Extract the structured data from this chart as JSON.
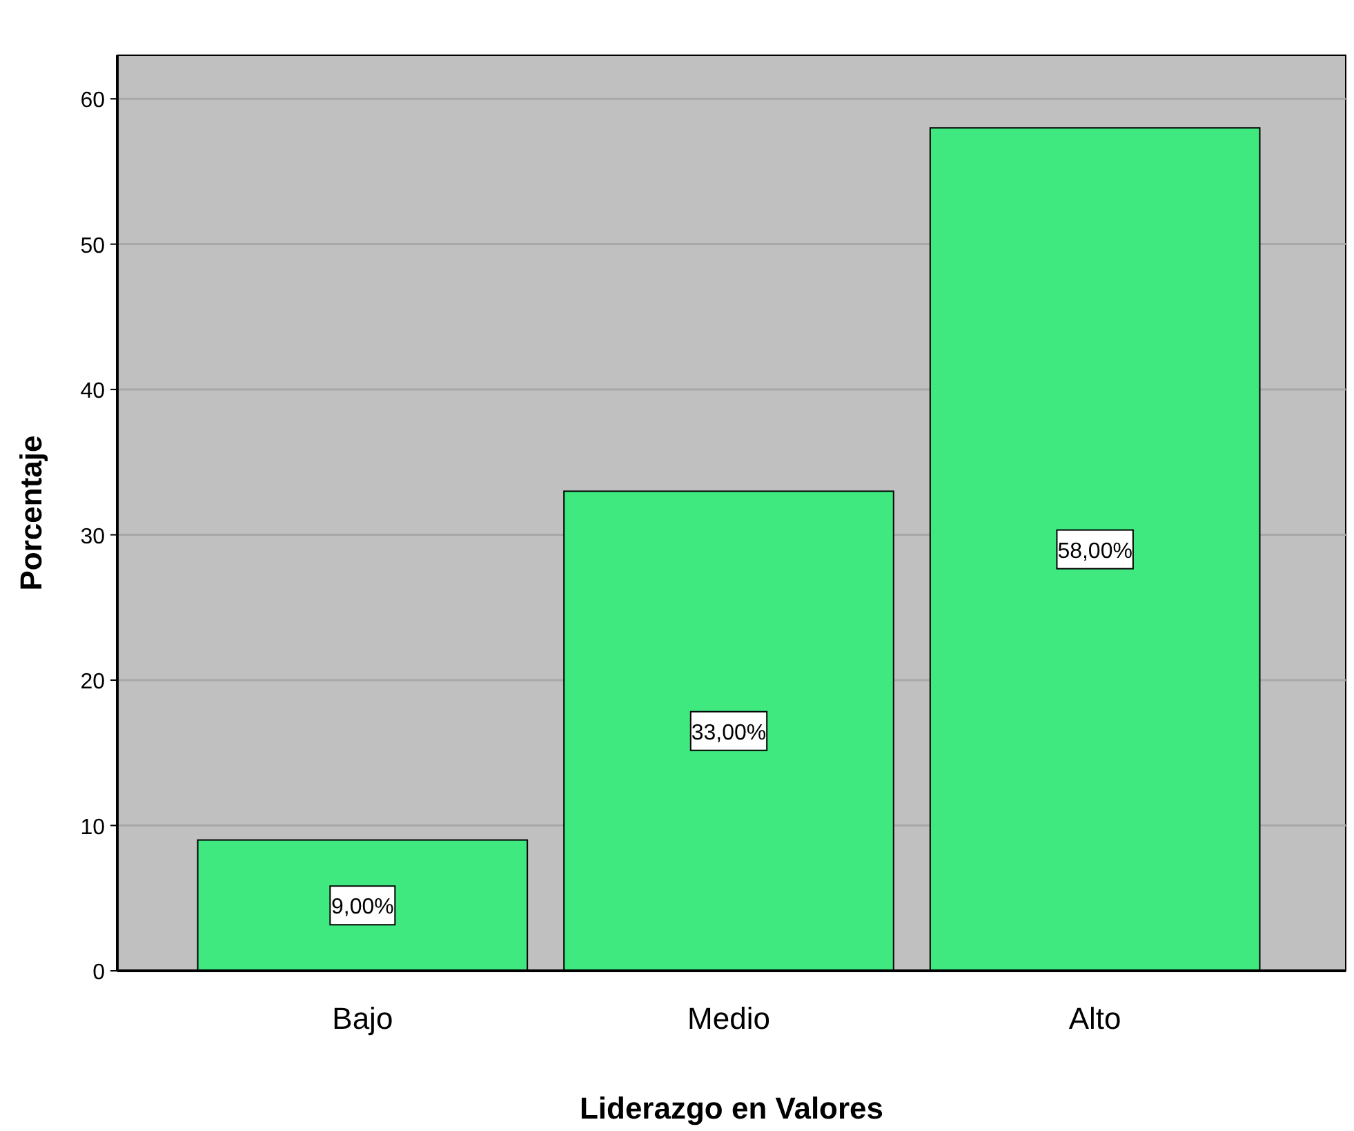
{
  "chart_data": {
    "type": "bar",
    "xlabel": "Liderazgo en Valores",
    "ylabel": "Porcentaje",
    "categories": [
      "Bajo",
      "Medio",
      "Alto"
    ],
    "values": [
      9,
      33,
      58
    ],
    "value_labels": [
      "9,00%",
      "33,00%",
      "58,00%"
    ],
    "color": "#40e880",
    "ylim": [
      0,
      63
    ],
    "yticks": [
      0,
      10,
      20,
      30,
      40,
      50,
      60
    ],
    "grid": "y"
  }
}
